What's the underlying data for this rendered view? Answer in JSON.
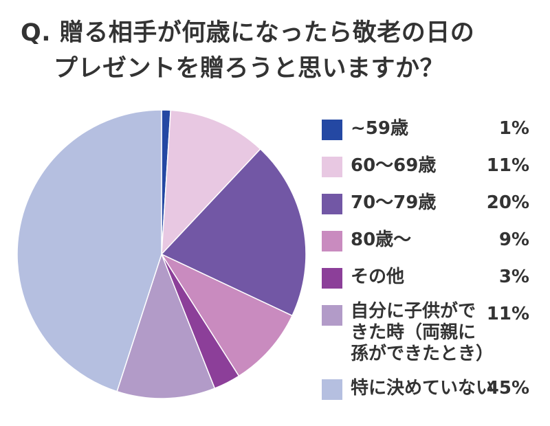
{
  "title": {
    "line1": "Q. 贈る相手が何歳になったら敬老の日の",
    "line2": "プレゼントを贈ろうと思いますか？"
  },
  "chart_data": {
    "type": "pie",
    "title": "Q. 贈る相手が何歳になったら敬老の日のプレゼントを贈ろうと思いますか？",
    "legend_position": "right",
    "slices": [
      {
        "label": "~59歳",
        "value": 1,
        "display": "1%",
        "color": "#2448a3"
      },
      {
        "label": "60〜69歳",
        "value": 11,
        "display": "11%",
        "color": "#e8c8e2"
      },
      {
        "label": "70〜79歳",
        "value": 20,
        "display": "20%",
        "color": "#7257a5"
      },
      {
        "label": "80歳〜",
        "value": 9,
        "display": "9%",
        "color": "#c98bbf"
      },
      {
        "label": "その他",
        "value": 3,
        "display": "3%",
        "color": "#8c3f99"
      },
      {
        "label": "自分に子供ができた時（両親に孫ができたとき）",
        "value": 11,
        "display": "11%",
        "color": "#b29bc8"
      },
      {
        "label": "特に決めていない",
        "value": 45,
        "display": "45%",
        "color": "#b5bfe0"
      }
    ]
  }
}
